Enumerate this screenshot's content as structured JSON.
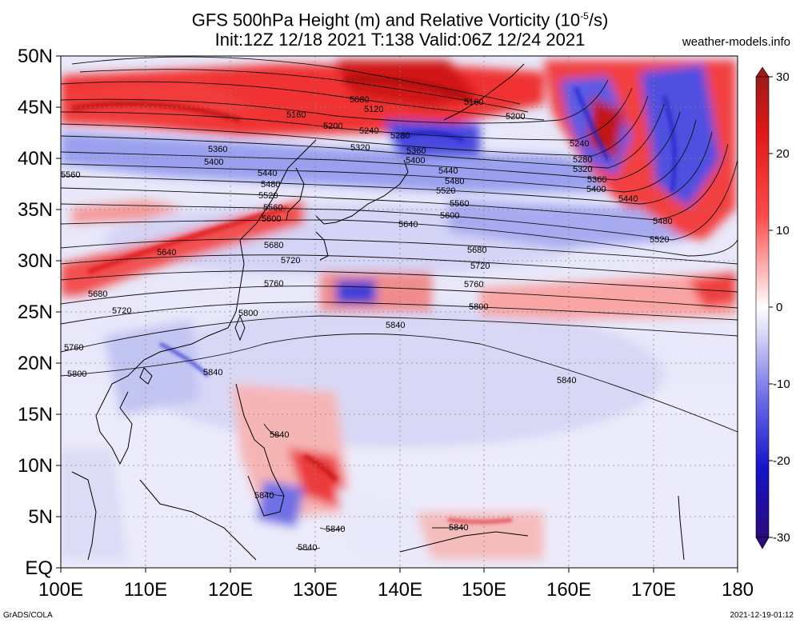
{
  "header": {
    "title_line1": "GFS 500hPa Height (m) and Relative Vorticity (10",
    "title_line1_sup": "-5",
    "title_line1_end": "/s)",
    "title_line2": "Init:12Z 12/18 2021  T:138  Valid:06Z 12/24 2021",
    "site": "weather-models.info"
  },
  "axes": {
    "lon_labels": [
      "100E",
      "110E",
      "120E",
      "130E",
      "140E",
      "150E",
      "160E",
      "170E",
      "180"
    ],
    "lat_labels": [
      "50N",
      "45N",
      "40N",
      "35N",
      "30N",
      "25N",
      "20N",
      "15N",
      "10N",
      "5N",
      "EQ"
    ],
    "lon_range": [
      100,
      180
    ],
    "lat_range": [
      0,
      50
    ]
  },
  "colorbar": {
    "ticks": [
      "30",
      "20",
      "10",
      "0",
      "-10",
      "-20",
      "-30"
    ],
    "colors": {
      "strong_pos": "#b71c1c",
      "pos": "#ef1a1a",
      "weak_pos": "#ffb4b4",
      "zero": "#ffffff",
      "weak_neg": "#c9c9f5",
      "neg": "#1818d8",
      "strong_neg": "#2c0a8c"
    }
  },
  "height_contours": [
    {
      "value": 5080,
      "label": "5080"
    },
    {
      "value": 5120,
      "label": "5120"
    },
    {
      "value": 5160,
      "label": "5160"
    },
    {
      "value": 5200,
      "label": "5200"
    },
    {
      "value": 5240,
      "label": "5240"
    },
    {
      "value": 5280,
      "label": "5280"
    },
    {
      "value": 5320,
      "label": "5320"
    },
    {
      "value": 5360,
      "label": "5360"
    },
    {
      "value": 5400,
      "label": "5400"
    },
    {
      "value": 5440,
      "label": "5440"
    },
    {
      "value": 5480,
      "label": "5480"
    },
    {
      "value": 5520,
      "label": "5520"
    },
    {
      "value": 5560,
      "label": "5560"
    },
    {
      "value": 5600,
      "label": "5600"
    },
    {
      "value": 5640,
      "label": "5640"
    },
    {
      "value": 5680,
      "label": "5680"
    },
    {
      "value": 5720,
      "label": "5720"
    },
    {
      "value": 5760,
      "label": "5760"
    },
    {
      "value": 5800,
      "label": "5800"
    },
    {
      "value": 5840,
      "label": "5840"
    }
  ],
  "footer": {
    "left": "GrADS/COLA",
    "right": "2021-12-19-01:12"
  }
}
